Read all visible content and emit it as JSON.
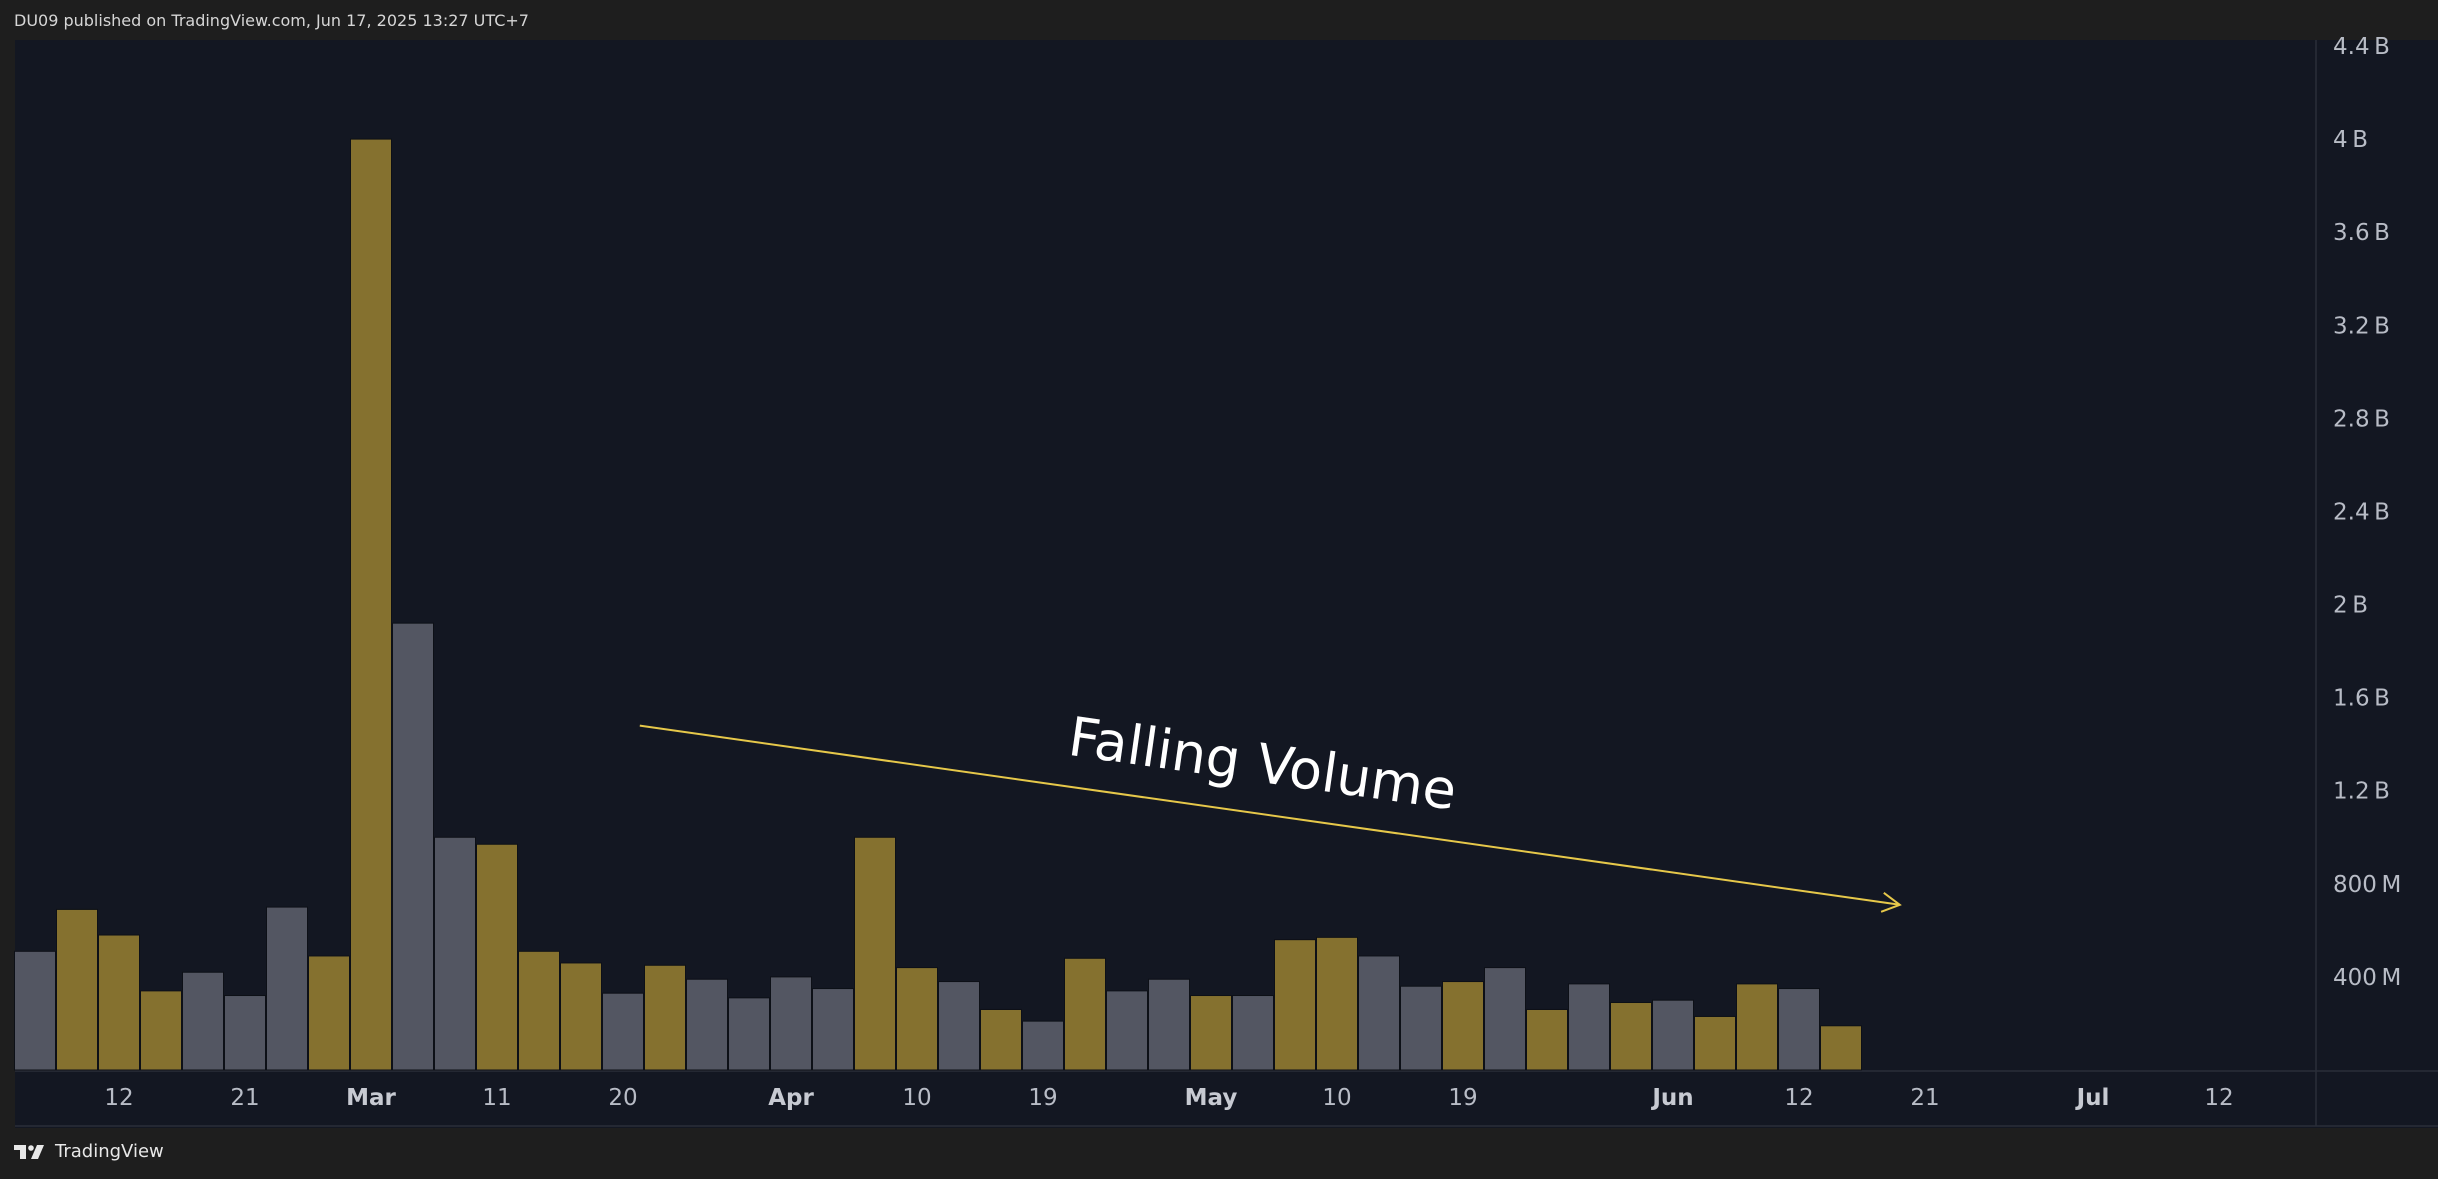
{
  "header": {
    "published_text": "DU09 published on TradingView.com, Jun 17, 2025 13:27 UTC+7"
  },
  "footer": {
    "logo_text": "TradingView",
    "logo_icon": "tradingview-logo-icon"
  },
  "colors": {
    "up": "#85712f",
    "down": "#535662",
    "background": "#131722",
    "trend_line": "#e6c84a",
    "annotation": "#ffffff"
  },
  "chart_data": {
    "type": "bar",
    "title": "",
    "xlabel": "",
    "ylabel": "",
    "ylim": [
      0,
      4400000000
    ],
    "y_ticks": [
      {
        "value": 400000000,
        "label": "400 M"
      },
      {
        "value": 800000000,
        "label": "800 M"
      },
      {
        "value": 1200000000,
        "label": "1.2 B"
      },
      {
        "value": 1600000000,
        "label": "1.6 B"
      },
      {
        "value": 2000000000,
        "label": "2 B"
      },
      {
        "value": 2400000000,
        "label": "2.4 B"
      },
      {
        "value": 2800000000,
        "label": "2.8 B"
      },
      {
        "value": 3200000000,
        "label": "3.2 B"
      },
      {
        "value": 3600000000,
        "label": "3.6 B"
      },
      {
        "value": 4000000000,
        "label": "4 B"
      },
      {
        "value": 4400000000,
        "label": "4.4 B"
      }
    ],
    "x_ticks": [
      {
        "label": "12",
        "bar": 2,
        "major": false
      },
      {
        "label": "21",
        "bar": 5,
        "major": false
      },
      {
        "label": "Mar",
        "bar": 8,
        "major": true
      },
      {
        "label": "11",
        "bar": 11,
        "major": false
      },
      {
        "label": "20",
        "bar": 14,
        "major": false
      },
      {
        "label": "Apr",
        "bar": 18,
        "major": true
      },
      {
        "label": "10",
        "bar": 21,
        "major": false
      },
      {
        "label": "19",
        "bar": 24,
        "major": false
      },
      {
        "label": "May",
        "bar": 28,
        "major": true
      },
      {
        "label": "10",
        "bar": 31,
        "major": false
      },
      {
        "label": "19",
        "bar": 34,
        "major": false
      },
      {
        "label": "Jun",
        "bar": 39,
        "major": true
      },
      {
        "label": "12",
        "bar": 42,
        "major": false
      },
      {
        "label": "21",
        "bar": 45,
        "major": false
      },
      {
        "label": "Jul",
        "bar": 49,
        "major": true
      },
      {
        "label": "12",
        "bar": 52,
        "major": false
      }
    ],
    "series": [
      {
        "values": [
          510000000,
          690000000,
          580000000,
          340000000,
          420000000,
          320000000,
          700000000,
          490000000,
          4000000000,
          1920000000,
          1000000000,
          970000000,
          510000000,
          460000000,
          330000000,
          450000000,
          390000000,
          310000000,
          400000000,
          350000000,
          1000000000,
          440000000,
          380000000,
          260000000,
          210000000,
          480000000,
          340000000,
          390000000,
          320000000,
          320000000,
          560000000,
          570000000,
          490000000,
          360000000,
          380000000,
          440000000,
          260000000,
          370000000,
          290000000,
          300000000,
          230000000,
          370000000,
          350000000,
          190000000
        ],
        "direction": [
          "down",
          "up",
          "up",
          "up",
          "down",
          "down",
          "down",
          "up",
          "up",
          "down",
          "down",
          "up",
          "up",
          "up",
          "down",
          "up",
          "down",
          "down",
          "down",
          "down",
          "up",
          "up",
          "down",
          "up",
          "down",
          "up",
          "down",
          "down",
          "up",
          "down",
          "up",
          "up",
          "down",
          "down",
          "up",
          "down",
          "up",
          "down",
          "up",
          "down",
          "up",
          "up",
          "down",
          "up"
        ]
      }
    ],
    "annotations": [
      {
        "type": "arrow",
        "label": "Falling Volume",
        "from": {
          "bar": 14.4,
          "value": 1480000000
        },
        "to": {
          "bar": 44.4,
          "value": 710000000
        }
      }
    ]
  }
}
